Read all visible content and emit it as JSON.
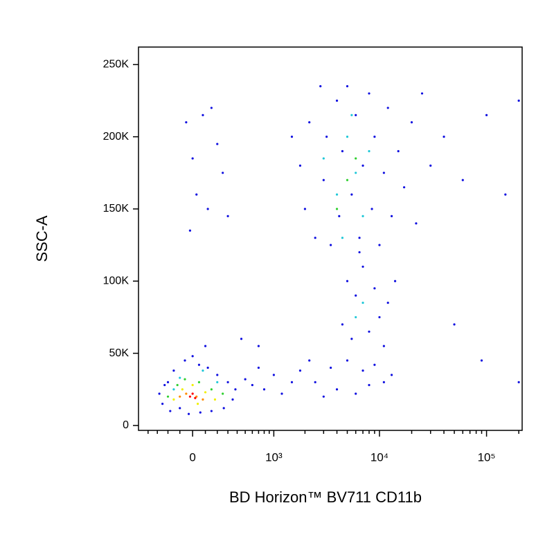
{
  "chart_data": {
    "type": "scatter",
    "x_label": "BD Horizon™ BV711 CD11b",
    "y_label": "SSC-A",
    "xscale": "biexponential",
    "xlim": [
      -520,
      215000
    ],
    "ylim": [
      -3400,
      262144
    ],
    "xticks": [
      0,
      {
        "value": 1000,
        "label": "10³"
      },
      {
        "value": 10000,
        "label": "10⁴"
      },
      {
        "value": 100000,
        "label": "10⁵"
      }
    ],
    "xminorticks": [
      -400,
      -300,
      -200,
      -100,
      100,
      200,
      300,
      400,
      500,
      600,
      700,
      800,
      900,
      2000,
      3000,
      4000,
      5000,
      6000,
      7000,
      8000,
      9000,
      20000,
      30000,
      40000,
      50000,
      60000,
      70000,
      80000,
      90000,
      200000
    ],
    "yticks": [
      0,
      {
        "value": 50000,
        "label": "50K"
      },
      {
        "value": 100000,
        "label": "100K"
      },
      {
        "value": 150000,
        "label": "150K"
      },
      {
        "value": 200000,
        "label": "200K"
      },
      {
        "value": 250000,
        "label": "250K"
      }
    ],
    "series": [
      {
        "color": "#1010e0",
        "x": [
          -280,
          -250,
          -200,
          -150,
          -100,
          -60,
          0,
          50,
          120,
          200,
          300,
          380,
          350,
          260,
          150,
          60,
          -30,
          -180,
          -230,
          100,
          500,
          600,
          700,
          800,
          1000,
          1200,
          1500,
          700,
          450,
          1800,
          2500,
          3000,
          3500,
          4000,
          5000,
          6000,
          7000,
          8000,
          9000,
          11000,
          13000,
          2200,
          4500,
          5000,
          5500,
          6000,
          7000,
          8000,
          9000,
          10000,
          12000,
          14000,
          6500,
          11000,
          1800,
          2000,
          2200,
          2500,
          2800,
          3000,
          3200,
          3500,
          4000,
          4200,
          4500,
          5000,
          5500,
          6000,
          6500,
          7000,
          8000,
          8500,
          9000,
          10000,
          11000,
          12000,
          13000,
          15000,
          17000,
          20000,
          25000,
          30000,
          1500,
          22000,
          -50,
          0,
          30,
          80,
          120,
          200,
          250,
          -20,
          150,
          300,
          40000,
          60000,
          100000,
          200000,
          150000,
          50000,
          90000,
          200000
        ],
        "values": [
          22000,
          15000,
          30000,
          38000,
          12000,
          45000,
          48000,
          42000,
          40000,
          35000,
          30000,
          25000,
          18000,
          12000,
          10000,
          9000,
          8000,
          10000,
          28000,
          55000,
          32000,
          28000,
          40000,
          25000,
          35000,
          22000,
          30000,
          55000,
          60000,
          38000,
          30000,
          20000,
          40000,
          25000,
          45000,
          22000,
          38000,
          28000,
          42000,
          30000,
          35000,
          45000,
          70000,
          100000,
          60000,
          90000,
          110000,
          65000,
          95000,
          75000,
          85000,
          100000,
          120000,
          55000,
          180000,
          150000,
          210000,
          130000,
          235000,
          170000,
          200000,
          125000,
          225000,
          145000,
          190000,
          235000,
          160000,
          215000,
          130000,
          180000,
          230000,
          150000,
          200000,
          125000,
          175000,
          220000,
          145000,
          190000,
          165000,
          210000,
          230000,
          180000,
          200000,
          140000,
          210000,
          185000,
          160000,
          215000,
          150000,
          195000,
          175000,
          135000,
          220000,
          145000,
          200000,
          170000,
          215000,
          225000,
          160000,
          70000,
          45000,
          30000
        ]
      },
      {
        "color": "#20c8d8",
        "x": [
          3000,
          4000,
          5000,
          6000,
          7000,
          5500,
          8000,
          4500,
          7000,
          6000,
          -150,
          200,
          80,
          -100
        ],
        "values": [
          185000,
          160000,
          200000,
          175000,
          145000,
          215000,
          190000,
          130000,
          85000,
          75000,
          25000,
          30000,
          38000,
          33000
        ]
      },
      {
        "color": "#30d030",
        "x": [
          -120,
          -60,
          50,
          150,
          -200,
          250,
          5000,
          6000,
          4000
        ],
        "values": [
          28000,
          32000,
          30000,
          25000,
          20000,
          22000,
          170000,
          185000,
          150000
        ]
      },
      {
        "color": "#f0f000",
        "x": [
          -80,
          0,
          100,
          -150,
          180,
          40
        ],
        "values": [
          25000,
          28000,
          23000,
          18000,
          18000,
          15000
        ]
      },
      {
        "color": "#ff8c00",
        "x": [
          -50,
          30,
          80,
          -100
        ],
        "values": [
          22000,
          20000,
          18000,
          20000
        ]
      },
      {
        "color": "#ff0000",
        "x": [
          -20,
          20,
          0
        ],
        "values": [
          20000,
          19000,
          22000
        ]
      }
    ]
  }
}
